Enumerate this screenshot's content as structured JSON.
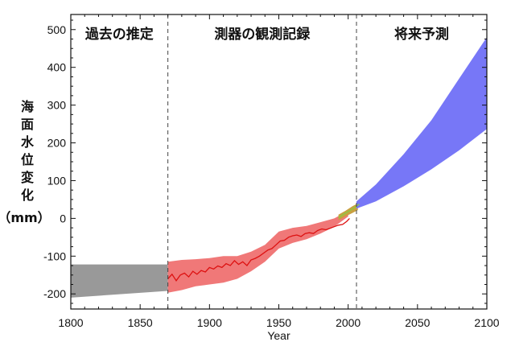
{
  "chart_data": {
    "type": "area",
    "xlabel": "Year",
    "ylabel": "海面水位変化（mm）",
    "ylabel_chars": [
      "海",
      "面",
      "水",
      "位",
      "変",
      "化",
      "（mm）"
    ],
    "xlim": [
      1800,
      2100
    ],
    "ylim": [
      -240,
      540
    ],
    "x_ticks": [
      1800,
      1850,
      1900,
      1950,
      2000,
      2050,
      2100
    ],
    "y_ticks": [
      -200,
      -100,
      0,
      100,
      200,
      300,
      400,
      500
    ],
    "grid": false,
    "period_dividers": [
      1870,
      2006
    ],
    "period_labels": [
      {
        "label": "過去の推定",
        "x": 1835
      },
      {
        "label": "測器の観測記録",
        "x": 1938
      },
      {
        "label": "将来予測",
        "x": 2053
      }
    ],
    "series": [
      {
        "kind": "band",
        "color": "#999999",
        "x": [
          1800,
          1870
        ],
        "lower": [
          -210,
          -192
        ],
        "upper": [
          -122,
          -122
        ]
      },
      {
        "kind": "band",
        "color": "#f07878",
        "x": [
          1870,
          1880,
          1890,
          1900,
          1910,
          1920,
          1930,
          1940,
          1950,
          1960,
          1970,
          1980,
          1990,
          2000
        ],
        "lower": [
          -197,
          -190,
          -180,
          -175,
          -170,
          -160,
          -140,
          -115,
          -80,
          -65,
          -55,
          -40,
          -22,
          5
        ],
        "upper": [
          -115,
          -110,
          -108,
          -105,
          -100,
          -100,
          -88,
          -70,
          -35,
          -25,
          -20,
          -10,
          0,
          20
        ]
      },
      {
        "kind": "line",
        "color": "#dd1111",
        "x": [
          1870,
          1873,
          1876,
          1879,
          1882,
          1885,
          1888,
          1891,
          1894,
          1897,
          1900,
          1903,
          1906,
          1909,
          1912,
          1915,
          1918,
          1921,
          1924,
          1927,
          1930,
          1933,
          1936,
          1939,
          1942,
          1945,
          1948,
          1951,
          1954,
          1957,
          1960,
          1963,
          1966,
          1969,
          1972,
          1975,
          1978,
          1981,
          1984,
          1987,
          1990,
          1993,
          1996,
          1999,
          2001
        ],
        "values": [
          -160,
          -148,
          -165,
          -150,
          -145,
          -155,
          -140,
          -148,
          -138,
          -142,
          -130,
          -134,
          -126,
          -130,
          -120,
          -125,
          -112,
          -122,
          -115,
          -125,
          -110,
          -106,
          -100,
          -92,
          -84,
          -80,
          -70,
          -60,
          -58,
          -50,
          -46,
          -44,
          -48,
          -40,
          -38,
          -40,
          -32,
          -28,
          -30,
          -26,
          -22,
          -18,
          -16,
          -8,
          0
        ]
      },
      {
        "kind": "band",
        "color": "#c8a040",
        "x": [
          1993,
          1998,
          2003,
          2007
        ],
        "lower": [
          -5,
          5,
          14,
          22
        ],
        "upper": [
          10,
          20,
          32,
          40
        ]
      },
      {
        "kind": "line",
        "color": "#88cc44",
        "x": [
          1993,
          1997,
          2001,
          2005,
          2008
        ],
        "values": [
          2,
          12,
          20,
          30,
          38
        ]
      },
      {
        "kind": "band",
        "color": "#7777f7",
        "x": [
          2006,
          2020,
          2040,
          2060,
          2080,
          2100
        ],
        "lower": [
          26,
          45,
          85,
          130,
          180,
          237
        ],
        "upper": [
          45,
          90,
          170,
          260,
          370,
          480
        ]
      }
    ]
  }
}
